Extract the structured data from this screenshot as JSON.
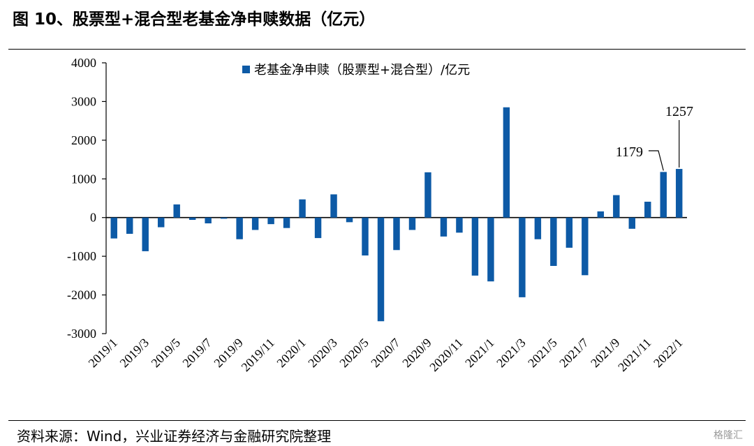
{
  "figure": {
    "title": "图 10、股票型+混合型老基金净申赎数据（亿元）",
    "source": "资料来源：Wind，兴业证券经济与金融研究院整理",
    "watermark": "格隆汇"
  },
  "chart_data": {
    "type": "bar",
    "title": "",
    "xlabel": "",
    "ylabel": "",
    "ylim": [
      -3000,
      4000
    ],
    "yticks": [
      4000,
      3000,
      2000,
      1000,
      0,
      -1000,
      -2000,
      -3000
    ],
    "grid": false,
    "legend_position": "top-center",
    "bar_color": "#0d5aa6",
    "series": [
      {
        "name": "老基金净申赎（股票型+混合型）/亿元",
        "values": [
          -540,
          -420,
          -870,
          -250,
          340,
          -60,
          -150,
          -30,
          -560,
          -320,
          -170,
          -270,
          470,
          -530,
          600,
          -120,
          -980,
          -2680,
          -840,
          -320,
          1170,
          -490,
          -390,
          -1500,
          -1650,
          2850,
          -2060,
          -560,
          -1250,
          -780,
          -1490,
          160,
          580,
          -290,
          410,
          1179,
          1257
        ]
      }
    ],
    "categories": [
      "2019/1",
      "2019/2",
      "2019/3",
      "2019/4",
      "2019/5",
      "2019/6",
      "2019/7",
      "2019/8",
      "2019/9",
      "2019/10",
      "2019/11",
      "2019/12",
      "2020/1",
      "2020/2",
      "2020/3",
      "2020/4",
      "2020/5",
      "2020/6",
      "2020/7",
      "2020/8",
      "2020/9",
      "2020/10",
      "2020/11",
      "2020/12",
      "2021/1",
      "2021/2",
      "2021/3",
      "2021/4",
      "2021/5",
      "2021/6",
      "2021/7",
      "2021/8",
      "2021/9",
      "2021/10",
      "2021/11",
      "2021/12",
      "2022/1"
    ],
    "tick_labels": [
      "2019/1",
      "2019/3",
      "2019/5",
      "2019/7",
      "2019/9",
      "2019/11",
      "2020/1",
      "2020/3",
      "2020/5",
      "2020/7",
      "2020/9",
      "2020/11",
      "2021/1",
      "2021/3",
      "2021/5",
      "2021/7",
      "2021/9",
      "2021/11",
      "2022/1"
    ],
    "annotations": [
      {
        "index": 35,
        "text": "1179"
      },
      {
        "index": 36,
        "text": "1257"
      }
    ]
  }
}
